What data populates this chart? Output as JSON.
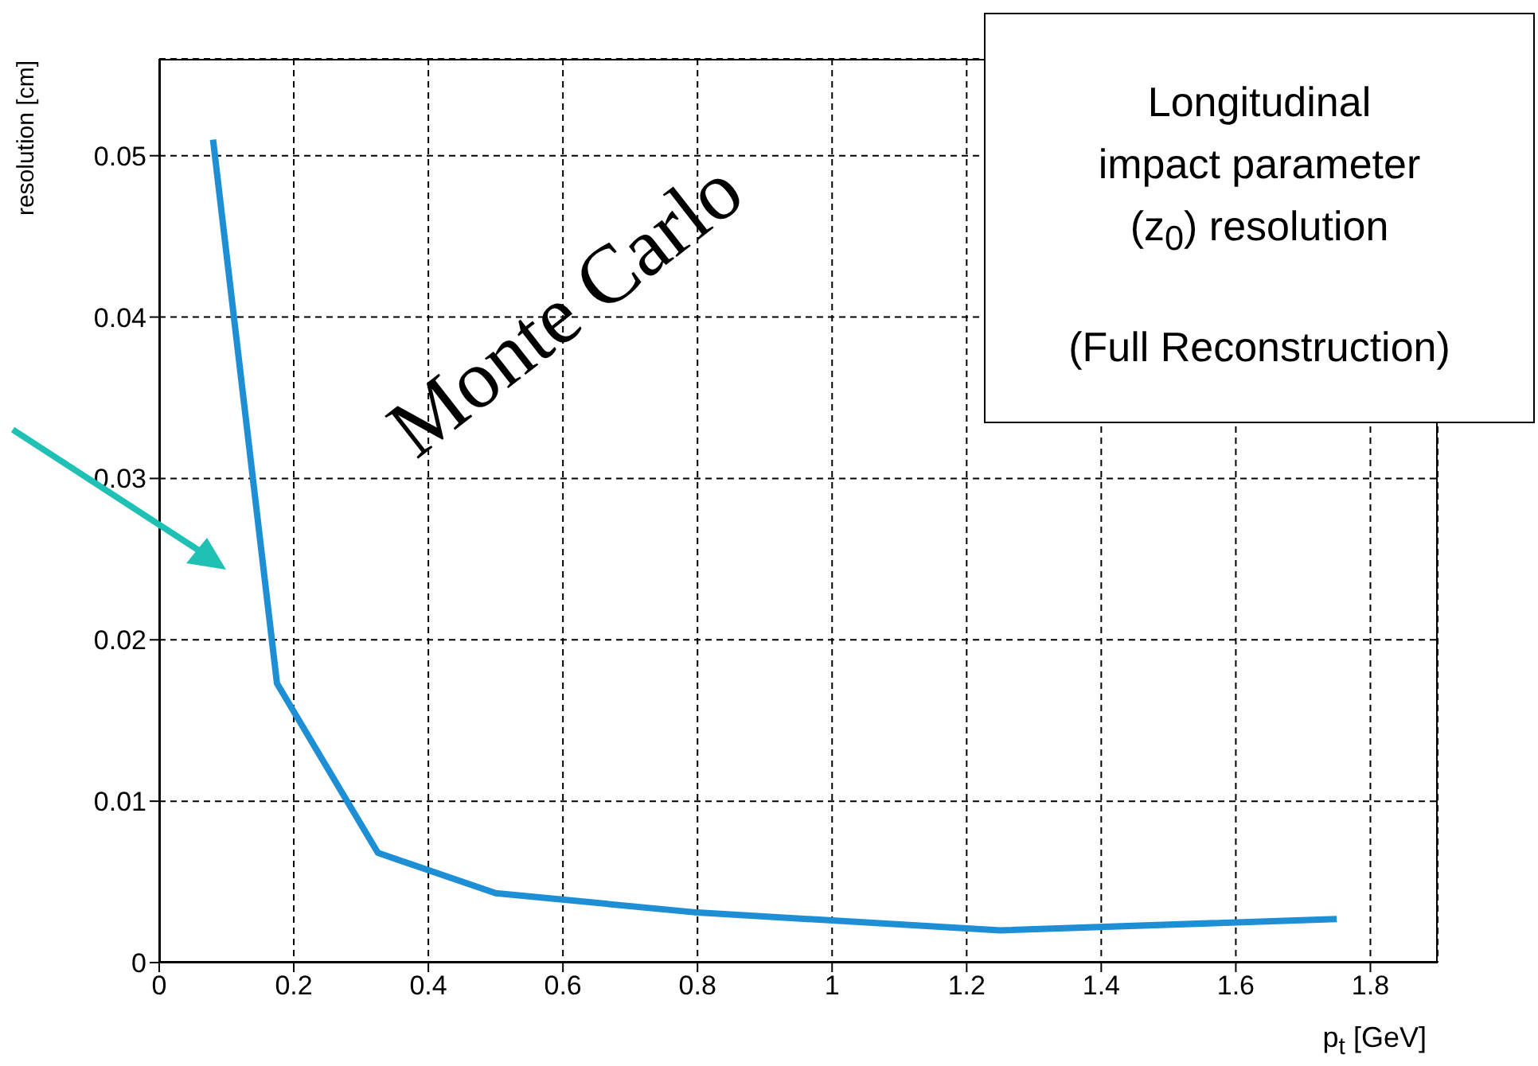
{
  "chart_data": {
    "type": "line",
    "xlabel": "p$_{t}$ [GeV]",
    "ylabel": "resolution [cm]",
    "annotations": [
      "Longitudinal impact parameter (z$_{0}$) resolution",
      "(Full  Reconstruction)",
      "Monte Carlo"
    ],
    "x": [
      0.08,
      0.175,
      0.325,
      0.5,
      0.8,
      1.25,
      1.75
    ],
    "series": [
      {
        "color": "#1e8fd5",
        "values": [
          0.051,
          0.0173,
          0.0068,
          0.0043,
          0.0031,
          0.002,
          0.0027
        ]
      }
    ],
    "xlim": [
      0,
      1.9
    ],
    "xticks": [
      0,
      0.2,
      0.4,
      0.6,
      0.8,
      1,
      1.2,
      1.4,
      1.6,
      1.8
    ],
    "ylim": [
      0,
      0.056
    ],
    "yticks": [
      0,
      0.01,
      0.02,
      0.03,
      0.04,
      0.05
    ],
    "grid": true,
    "marker": "none",
    "line_style": "solid"
  }
}
